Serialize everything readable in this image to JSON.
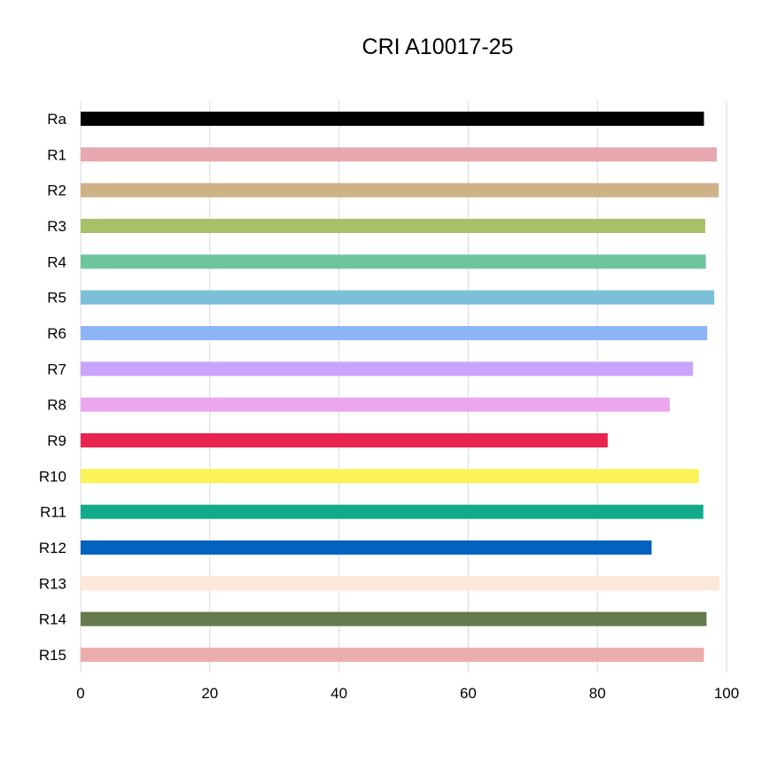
{
  "chart_data": {
    "type": "bar",
    "orientation": "horizontal",
    "title": "CRI A10017-25",
    "xlabel": "",
    "ylabel": "",
    "xlim": [
      0,
      100
    ],
    "x_ticks": [
      "0",
      "20",
      "40",
      "60",
      "80",
      "100"
    ],
    "grid": "vertical",
    "legend": "none",
    "categories": [
      "Ra",
      "R1",
      "R2",
      "R3",
      "R4",
      "R5",
      "R6",
      "R7",
      "R8",
      "R9",
      "R10",
      "R11",
      "R12",
      "R13",
      "R14",
      "R15"
    ],
    "values": [
      96.5,
      98.5,
      98.8,
      96.7,
      96.8,
      98.1,
      97.0,
      94.8,
      91.2,
      81.6,
      95.7,
      96.4,
      88.4,
      98.9,
      96.9,
      96.5
    ],
    "colors": [
      "#000000",
      "#e6a8b0",
      "#cfb287",
      "#a8c068",
      "#6fc59e",
      "#7bc0d8",
      "#8db4f7",
      "#c9a4fb",
      "#eba6ee",
      "#e8234e",
      "#fbf257",
      "#12ab8a",
      "#0062bf",
      "#fde7da",
      "#667a4b",
      "#ebaeac"
    ]
  }
}
